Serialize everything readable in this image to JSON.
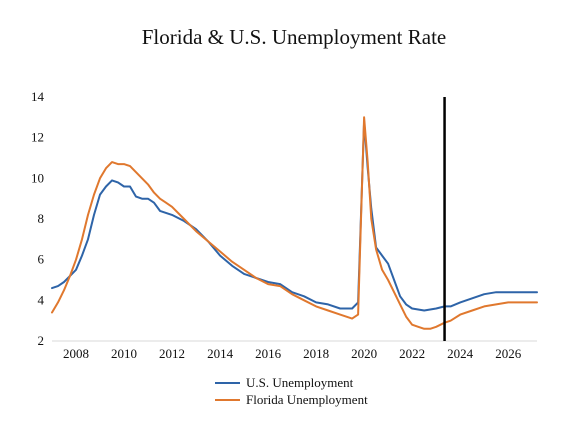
{
  "chart_data": {
    "type": "line",
    "title": "Florida & U.S. Unemployment Rate",
    "xlabel": "",
    "ylabel": "",
    "xlim": [
      2007.0,
      2027.2
    ],
    "ylim": [
      2,
      14
    ],
    "y_ticks": [
      2,
      4,
      6,
      8,
      10,
      12,
      14
    ],
    "x_ticks": [
      2008,
      2010,
      2012,
      2014,
      2016,
      2018,
      2020,
      2022,
      2024,
      2026
    ],
    "grid": false,
    "legend_position": "bottom",
    "vertical_marker": {
      "x": 2023.35,
      "color": "#000000"
    },
    "series": [
      {
        "name": "U.S. Unemployment",
        "color": "#2E64A8",
        "x": [
          2007.0,
          2007.25,
          2007.5,
          2007.75,
          2008.0,
          2008.25,
          2008.5,
          2008.75,
          2009.0,
          2009.25,
          2009.5,
          2009.75,
          2010.0,
          2010.25,
          2010.5,
          2010.75,
          2011.0,
          2011.25,
          2011.5,
          2011.75,
          2012.0,
          2012.5,
          2013.0,
          2013.5,
          2014.0,
          2014.5,
          2015.0,
          2015.5,
          2016.0,
          2016.5,
          2017.0,
          2017.5,
          2018.0,
          2018.5,
          2019.0,
          2019.5,
          2019.75,
          2020.0,
          2020.15,
          2020.3,
          2020.5,
          2020.75,
          2021.0,
          2021.25,
          2021.5,
          2021.75,
          2022.0,
          2022.5,
          2023.0,
          2023.35,
          2023.6,
          2024.0,
          2024.5,
          2025.0,
          2025.5,
          2026.0,
          2026.5,
          2027.2
        ],
        "values": [
          4.6,
          4.7,
          4.9,
          5.2,
          5.5,
          6.2,
          7.0,
          8.2,
          9.2,
          9.6,
          9.9,
          9.8,
          9.6,
          9.6,
          9.1,
          9.0,
          9.0,
          8.8,
          8.4,
          8.3,
          8.2,
          7.9,
          7.5,
          6.9,
          6.2,
          5.7,
          5.3,
          5.1,
          4.9,
          4.8,
          4.4,
          4.2,
          3.9,
          3.8,
          3.6,
          3.6,
          3.9,
          12.8,
          10.5,
          8.5,
          6.6,
          6.2,
          5.8,
          5.0,
          4.2,
          3.8,
          3.6,
          3.5,
          3.6,
          3.7,
          3.7,
          3.9,
          4.1,
          4.3,
          4.4,
          4.4,
          4.4,
          4.4
        ]
      },
      {
        "name": "Florida Unemployment",
        "color": "#E0782E",
        "x": [
          2007.0,
          2007.25,
          2007.5,
          2007.75,
          2008.0,
          2008.25,
          2008.5,
          2008.75,
          2009.0,
          2009.25,
          2009.5,
          2009.75,
          2010.0,
          2010.25,
          2010.5,
          2010.75,
          2011.0,
          2011.25,
          2011.5,
          2011.75,
          2012.0,
          2012.5,
          2013.0,
          2013.5,
          2014.0,
          2014.5,
          2015.0,
          2015.5,
          2016.0,
          2016.5,
          2017.0,
          2017.5,
          2018.0,
          2018.5,
          2019.0,
          2019.5,
          2019.75,
          2020.0,
          2020.15,
          2020.3,
          2020.5,
          2020.75,
          2021.0,
          2021.25,
          2021.5,
          2021.75,
          2022.0,
          2022.25,
          2022.5,
          2022.75,
          2023.0,
          2023.35,
          2023.6,
          2024.0,
          2024.5,
          2025.0,
          2025.5,
          2026.0,
          2026.5,
          2027.2
        ],
        "values": [
          3.4,
          3.9,
          4.5,
          5.2,
          6.0,
          7.0,
          8.2,
          9.2,
          10.0,
          10.5,
          10.8,
          10.7,
          10.7,
          10.6,
          10.3,
          10.0,
          9.7,
          9.3,
          9.0,
          8.8,
          8.6,
          8.0,
          7.4,
          6.9,
          6.4,
          5.9,
          5.5,
          5.1,
          4.8,
          4.7,
          4.3,
          4.0,
          3.7,
          3.5,
          3.3,
          3.1,
          3.3,
          13.0,
          10.8,
          8.0,
          6.5,
          5.5,
          5.0,
          4.4,
          3.8,
          3.2,
          2.8,
          2.7,
          2.6,
          2.6,
          2.7,
          2.9,
          3.0,
          3.3,
          3.5,
          3.7,
          3.8,
          3.9,
          3.9,
          3.9
        ]
      }
    ]
  }
}
